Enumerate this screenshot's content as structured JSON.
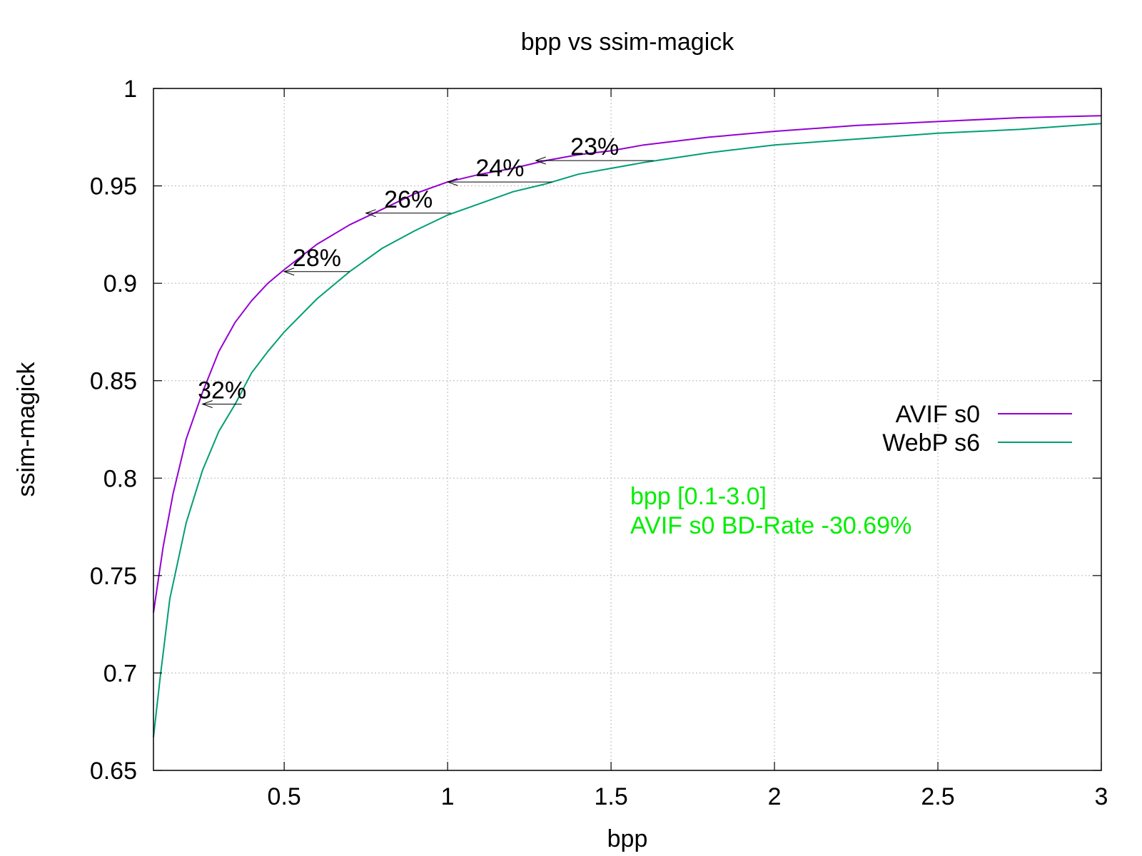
{
  "chart_data": {
    "type": "line",
    "title": "bpp vs ssim-magick",
    "xlabel": "bpp",
    "ylabel": "ssim-magick",
    "xlim": [
      0.1,
      3.0
    ],
    "ylim": [
      0.65,
      1.0
    ],
    "xticks": [
      0.5,
      1,
      1.5,
      2,
      2.5,
      3
    ],
    "xtick_labels": [
      "0.5",
      "1",
      "1.5",
      "2",
      "2.5",
      "3"
    ],
    "yticks": [
      0.65,
      0.7,
      0.75,
      0.8,
      0.85,
      0.9,
      0.95,
      1.0
    ],
    "ytick_labels": [
      "0.65",
      "0.7",
      "0.75",
      "0.8",
      "0.85",
      "0.9",
      "0.95",
      "1"
    ],
    "grid": true,
    "legend_position": "right",
    "series": [
      {
        "name": "AVIF s0",
        "color": "#9400d3",
        "points": [
          [
            0.1,
            0.731
          ],
          [
            0.13,
            0.765
          ],
          [
            0.16,
            0.792
          ],
          [
            0.2,
            0.82
          ],
          [
            0.25,
            0.844
          ],
          [
            0.3,
            0.865
          ],
          [
            0.35,
            0.88
          ],
          [
            0.4,
            0.891
          ],
          [
            0.45,
            0.9
          ],
          [
            0.5,
            0.907
          ],
          [
            0.6,
            0.92
          ],
          [
            0.7,
            0.93
          ],
          [
            0.8,
            0.938
          ],
          [
            0.9,
            0.946
          ],
          [
            1.0,
            0.952
          ],
          [
            1.1,
            0.956
          ],
          [
            1.2,
            0.959
          ],
          [
            1.3,
            0.963
          ],
          [
            1.4,
            0.966
          ],
          [
            1.5,
            0.968
          ],
          [
            1.6,
            0.971
          ],
          [
            1.8,
            0.975
          ],
          [
            2.0,
            0.978
          ],
          [
            2.25,
            0.981
          ],
          [
            2.5,
            0.983
          ],
          [
            2.75,
            0.985
          ],
          [
            3.0,
            0.986
          ]
        ]
      },
      {
        "name": "WebP s6",
        "color": "#009e73",
        "points": [
          [
            0.1,
            0.667
          ],
          [
            0.12,
            0.697
          ],
          [
            0.15,
            0.738
          ],
          [
            0.2,
            0.777
          ],
          [
            0.25,
            0.804
          ],
          [
            0.3,
            0.824
          ],
          [
            0.35,
            0.838
          ],
          [
            0.4,
            0.854
          ],
          [
            0.45,
            0.865
          ],
          [
            0.5,
            0.875
          ],
          [
            0.6,
            0.892
          ],
          [
            0.7,
            0.906
          ],
          [
            0.8,
            0.918
          ],
          [
            0.9,
            0.927
          ],
          [
            1.0,
            0.935
          ],
          [
            1.1,
            0.941
          ],
          [
            1.2,
            0.947
          ],
          [
            1.3,
            0.951
          ],
          [
            1.4,
            0.956
          ],
          [
            1.5,
            0.959
          ],
          [
            1.6,
            0.962
          ],
          [
            1.8,
            0.967
          ],
          [
            2.0,
            0.971
          ],
          [
            2.25,
            0.974
          ],
          [
            2.5,
            0.977
          ],
          [
            2.75,
            0.979
          ],
          [
            3.0,
            0.982
          ]
        ]
      }
    ],
    "arrows": [
      {
        "label": "32%",
        "y": 0.838,
        "from_x": 0.37,
        "to_x": 0.25
      },
      {
        "label": "28%",
        "y": 0.906,
        "from_x": 0.7,
        "to_x": 0.5
      },
      {
        "label": "26%",
        "y": 0.936,
        "from_x": 1.01,
        "to_x": 0.75
      },
      {
        "label": "24%",
        "y": 0.952,
        "from_x": 1.32,
        "to_x": 1.0
      },
      {
        "label": "23%",
        "y": 0.963,
        "from_x": 1.63,
        "to_x": 1.27
      }
    ],
    "annotations": [
      {
        "text": "bpp [0.1-3.0]",
        "color": "#00ee00"
      },
      {
        "text": "AVIF s0 BD-Rate -30.69%",
        "color": "#00ee00"
      }
    ]
  }
}
